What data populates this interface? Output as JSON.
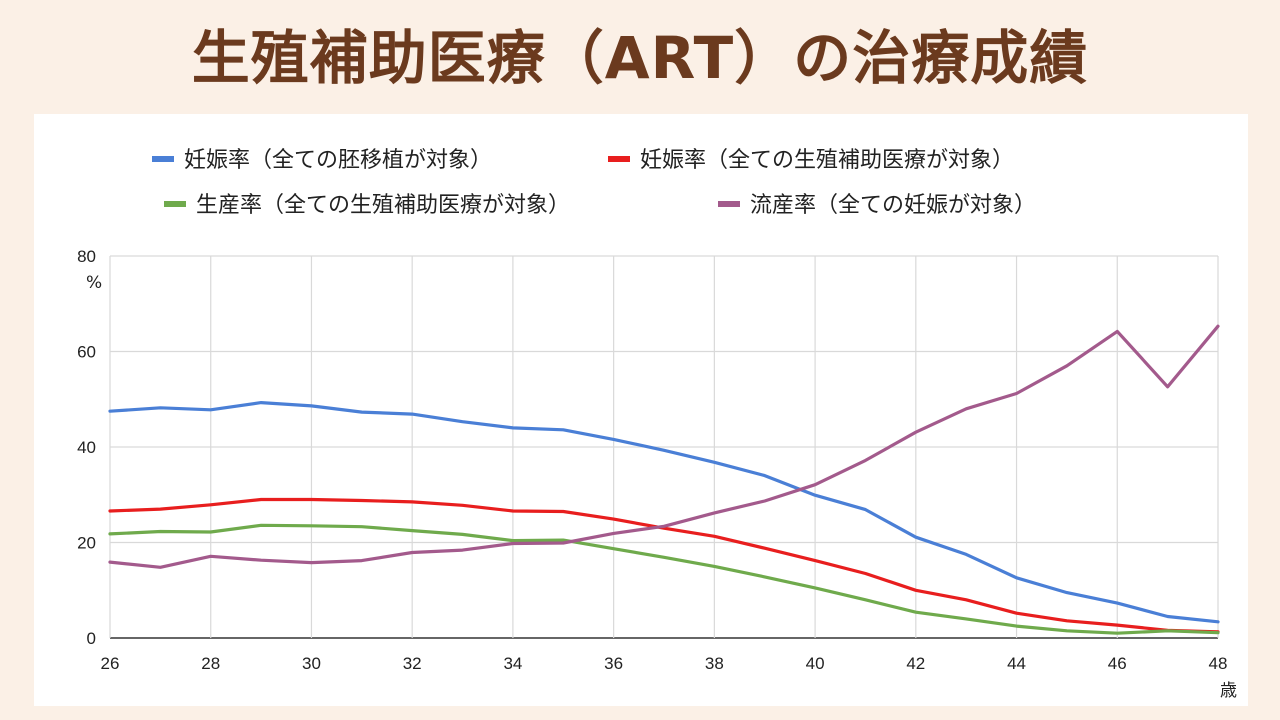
{
  "title": "生殖補助医療（ART）の治療成績",
  "chart_data": {
    "type": "line",
    "title": "生殖補助医療（ART）の治療成績",
    "x": [
      26,
      27,
      28,
      29,
      30,
      31,
      32,
      33,
      34,
      35,
      36,
      37,
      38,
      39,
      40,
      41,
      42,
      43,
      44,
      45,
      46,
      47,
      48
    ],
    "xlim": [
      26,
      48
    ],
    "ylim": [
      0,
      80
    ],
    "xticks": [
      26,
      28,
      30,
      32,
      34,
      36,
      38,
      40,
      42,
      44,
      46,
      48
    ],
    "yticks": [
      0,
      20,
      40,
      60,
      80
    ],
    "xlabel": "歳",
    "ylabel": "%",
    "grid": true,
    "legend_position": "top",
    "series": [
      {
        "name": "妊娠率（全ての胚移植が対象）",
        "color": "#4a7fd6",
        "values": [
          47.5,
          48.2,
          47.8,
          49.3,
          48.6,
          47.3,
          46.9,
          45.3,
          44.0,
          43.6,
          41.6,
          39.3,
          36.8,
          34.0,
          29.9,
          26.9,
          21.1,
          17.5,
          12.6,
          9.5,
          7.3,
          4.5,
          3.4
        ]
      },
      {
        "name": "妊娠率（全ての生殖補助医療が対象）",
        "color": "#e81e1e",
        "values": [
          26.6,
          27.0,
          27.9,
          29.0,
          29.0,
          28.8,
          28.5,
          27.8,
          26.6,
          26.5,
          24.9,
          23.0,
          21.3,
          18.8,
          16.2,
          13.5,
          10.0,
          8.0,
          5.2,
          3.6,
          2.7,
          1.6,
          1.3
        ]
      },
      {
        "name": "生産率（全ての生殖補助医療が対象）",
        "color": "#6faa4c",
        "values": [
          21.8,
          22.3,
          22.2,
          23.6,
          23.5,
          23.3,
          22.5,
          21.7,
          20.4,
          20.5,
          18.7,
          16.9,
          15.0,
          12.8,
          10.5,
          8.0,
          5.4,
          4.0,
          2.5,
          1.5,
          1.0,
          1.5,
          1.1
        ]
      },
      {
        "name": "流産率（全ての妊娠が対象）",
        "color": "#a35a8c",
        "values": [
          15.9,
          14.8,
          17.1,
          16.3,
          15.8,
          16.2,
          17.9,
          18.4,
          19.8,
          19.9,
          21.9,
          23.4,
          26.2,
          28.7,
          32.1,
          37.2,
          43.1,
          48.0,
          51.2,
          57.0,
          64.2,
          52.6,
          65.3
        ]
      }
    ]
  }
}
